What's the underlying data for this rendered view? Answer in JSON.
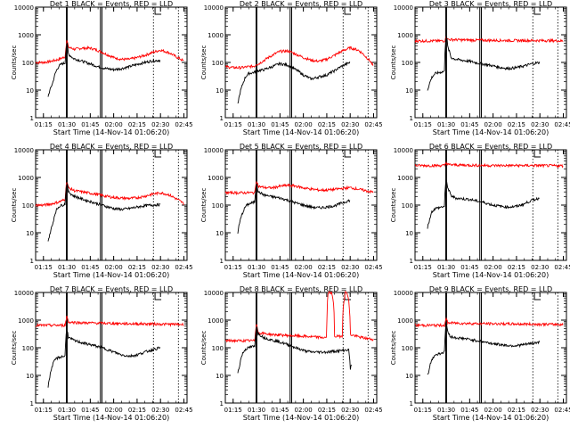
{
  "figure": {
    "ylabel": "Counts/sec",
    "xlabel": "Start Time (14-Nov-14 01:06:20)",
    "x_ticks": [
      "01:15",
      "01:30",
      "01:45",
      "02:00",
      "02:15",
      "02:30",
      "02:45"
    ],
    "y_ticks": [
      "1",
      "10",
      "100",
      "1000",
      "10000"
    ],
    "colors": {
      "events": "#000000",
      "lld": "#ff0000",
      "axes": "#000000"
    }
  },
  "chart_data": [
    {
      "type": "line",
      "title": "Det 1 BLACK = Events, RED = LLD",
      "x_range": [
        "01:10",
        "02:47"
      ],
      "ylim": [
        1,
        10000
      ],
      "y_scale": "log",
      "series": [
        {
          "name": "Events",
          "x": [
            "01:18",
            "01:19",
            "01:21",
            "01:23",
            "01:25",
            "01:27",
            "01:29",
            "01:30",
            "01:31",
            "01:34",
            "01:38",
            "01:42",
            "01:46",
            "01:50",
            "01:55",
            "02:00",
            "02:05",
            "02:10",
            "02:15",
            "02:20",
            "02:25",
            "02:30"
          ],
          "values": [
            6,
            9,
            18,
            45,
            75,
            90,
            95,
            520,
            200,
            140,
            120,
            100,
            85,
            70,
            60,
            55,
            60,
            70,
            85,
            100,
            115,
            120
          ]
        },
        {
          "name": "LLD",
          "x": [
            "01:10",
            "01:15",
            "01:20",
            "01:25",
            "01:29",
            "01:30",
            "01:31",
            "01:35",
            "01:40",
            "01:45",
            "01:50",
            "01:55",
            "02:00",
            "02:05",
            "02:10",
            "02:15",
            "02:20",
            "02:25",
            "02:30",
            "02:35",
            "02:40",
            "02:45"
          ],
          "values": [
            100,
            100,
            110,
            130,
            160,
            650,
            350,
            300,
            330,
            330,
            270,
            200,
            150,
            130,
            130,
            150,
            180,
            230,
            280,
            230,
            160,
            110
          ]
        }
      ]
    },
    {
      "type": "line",
      "title": "Det 2 BLACK = Events, RED = LLD",
      "x_range": [
        "01:10",
        "02:47"
      ],
      "ylim": [
        1,
        10000
      ],
      "y_scale": "log",
      "series": [
        {
          "name": "Events",
          "x": [
            "01:18",
            "01:19",
            "01:21",
            "01:23",
            "01:25",
            "01:27",
            "01:29",
            "01:30",
            "01:31",
            "01:35",
            "01:40",
            "01:45",
            "01:50",
            "01:55",
            "02:00",
            "02:05",
            "02:10",
            "02:15",
            "02:20",
            "02:25",
            "02:30"
          ],
          "values": [
            3,
            6,
            15,
            30,
            40,
            42,
            45,
            55,
            50,
            55,
            70,
            90,
            80,
            55,
            35,
            25,
            30,
            35,
            50,
            75,
            100
          ]
        },
        {
          "name": "LLD",
          "x": [
            "01:10",
            "01:15",
            "01:20",
            "01:25",
            "01:29",
            "01:30",
            "01:31",
            "01:35",
            "01:40",
            "01:45",
            "01:50",
            "01:55",
            "02:00",
            "02:05",
            "02:10",
            "02:15",
            "02:20",
            "02:25",
            "02:30",
            "02:35",
            "02:40",
            "02:45"
          ],
          "values": [
            70,
            65,
            65,
            70,
            75,
            90,
            85,
            120,
            180,
            250,
            260,
            200,
            150,
            120,
            110,
            130,
            180,
            260,
            340,
            280,
            160,
            70
          ]
        }
      ]
    },
    {
      "type": "line",
      "title": "Det 3 BLACK = Events, RED = LLD",
      "x_range": [
        "01:10",
        "02:47"
      ],
      "ylim": [
        1,
        10000
      ],
      "y_scale": "log",
      "series": [
        {
          "name": "Events",
          "x": [
            "01:18",
            "01:19",
            "01:21",
            "01:23",
            "01:25",
            "01:27",
            "01:29",
            "01:30",
            "01:31",
            "01:33",
            "01:36",
            "01:40",
            "01:45",
            "01:50",
            "01:55",
            "02:00",
            "02:05",
            "02:10",
            "02:15",
            "02:20",
            "02:25",
            "02:30"
          ],
          "values": [
            10,
            15,
            30,
            40,
            42,
            45,
            48,
            1000,
            350,
            150,
            130,
            120,
            110,
            95,
            85,
            75,
            65,
            60,
            65,
            75,
            90,
            100
          ]
        },
        {
          "name": "LLD",
          "x": [
            "01:10",
            "01:20",
            "01:29",
            "01:30",
            "01:31",
            "01:40",
            "01:50",
            "02:00",
            "02:10",
            "02:20",
            "02:30",
            "02:40",
            "02:45"
          ],
          "values": [
            600,
            600,
            600,
            850,
            680,
            650,
            640,
            630,
            620,
            620,
            620,
            610,
            600
          ]
        }
      ]
    },
    {
      "type": "line",
      "title": "Det 4 BLACK = Events, RED = LLD",
      "x_range": [
        "01:10",
        "02:47"
      ],
      "ylim": [
        1,
        10000
      ],
      "y_scale": "log",
      "series": [
        {
          "name": "Events",
          "x": [
            "01:18",
            "01:19",
            "01:21",
            "01:23",
            "01:25",
            "01:27",
            "01:29",
            "01:30",
            "01:31",
            "01:34",
            "01:38",
            "01:42",
            "01:46",
            "01:50",
            "01:55",
            "02:00",
            "02:05",
            "02:10",
            "02:15",
            "02:20",
            "02:25",
            "02:30"
          ],
          "values": [
            5,
            8,
            20,
            60,
            90,
            100,
            110,
            650,
            300,
            220,
            180,
            150,
            130,
            110,
            90,
            75,
            70,
            75,
            85,
            95,
            100,
            105
          ]
        },
        {
          "name": "LLD",
          "x": [
            "01:10",
            "01:15",
            "01:20",
            "01:25",
            "01:29",
            "01:30",
            "01:31",
            "01:35",
            "01:40",
            "01:45",
            "01:50",
            "01:55",
            "02:00",
            "02:05",
            "02:10",
            "02:15",
            "02:20",
            "02:25",
            "02:30",
            "02:35",
            "02:40",
            "02:45"
          ],
          "values": [
            100,
            100,
            110,
            130,
            160,
            750,
            420,
            330,
            300,
            270,
            240,
            210,
            190,
            180,
            175,
            185,
            210,
            250,
            280,
            240,
            170,
            110
          ]
        }
      ]
    },
    {
      "type": "line",
      "title": "Det 5 BLACK = Events, RED = LLD",
      "x_range": [
        "01:10",
        "02:47"
      ],
      "ylim": [
        1,
        10000
      ],
      "y_scale": "log",
      "series": [
        {
          "name": "Events",
          "x": [
            "01:18",
            "01:19",
            "01:21",
            "01:23",
            "01:25",
            "01:27",
            "01:29",
            "01:30",
            "01:31",
            "01:35",
            "01:40",
            "01:45",
            "01:50",
            "01:55",
            "02:00",
            "02:05",
            "02:10",
            "02:15",
            "02:20",
            "02:25",
            "02:30"
          ],
          "values": [
            10,
            20,
            50,
            90,
            110,
            120,
            130,
            650,
            300,
            230,
            200,
            180,
            150,
            120,
            100,
            85,
            80,
            85,
            95,
            120,
            150
          ]
        },
        {
          "name": "LLD",
          "x": [
            "01:10",
            "01:20",
            "01:29",
            "01:30",
            "01:31",
            "01:35",
            "01:40",
            "01:45",
            "01:50",
            "01:55",
            "02:00",
            "02:05",
            "02:10",
            "02:15",
            "02:20",
            "02:25",
            "02:30",
            "02:35",
            "02:40",
            "02:45"
          ],
          "values": [
            280,
            280,
            280,
            800,
            480,
            430,
            420,
            480,
            520,
            490,
            420,
            380,
            350,
            350,
            370,
            400,
            430,
            380,
            330,
            290
          ]
        }
      ]
    },
    {
      "type": "line",
      "title": "Det 6 BLACK = Events, RED = LLD",
      "x_range": [
        "01:10",
        "02:47"
      ],
      "ylim": [
        1,
        10000
      ],
      "y_scale": "log",
      "series": [
        {
          "name": "Events",
          "x": [
            "01:18",
            "01:19",
            "01:21",
            "01:23",
            "01:25",
            "01:27",
            "01:29",
            "01:30",
            "01:31",
            "01:33",
            "01:36",
            "01:40",
            "01:45",
            "01:50",
            "01:55",
            "02:00",
            "02:05",
            "02:10",
            "02:15",
            "02:20",
            "02:25",
            "02:30"
          ],
          "values": [
            15,
            25,
            60,
            75,
            80,
            85,
            90,
            900,
            400,
            220,
            180,
            170,
            160,
            140,
            120,
            100,
            90,
            85,
            90,
            110,
            150,
            180
          ]
        },
        {
          "name": "LLD",
          "x": [
            "01:10",
            "01:20",
            "01:29",
            "01:30",
            "01:31",
            "01:40",
            "01:50",
            "02:00",
            "02:10",
            "02:20",
            "02:30",
            "02:40",
            "02:45"
          ],
          "values": [
            2700,
            2700,
            2700,
            3500,
            2900,
            2800,
            2750,
            2700,
            2700,
            2700,
            2700,
            2650,
            2650
          ]
        }
      ]
    },
    {
      "type": "line",
      "title": "Det 7 BLACK = Events, RED = LLD",
      "x_range": [
        "01:10",
        "02:47"
      ],
      "ylim": [
        1,
        10000
      ],
      "y_scale": "log",
      "series": [
        {
          "name": "Events",
          "x": [
            "01:18",
            "01:19",
            "01:21",
            "01:23",
            "01:25",
            "01:27",
            "01:29",
            "01:30",
            "01:31",
            "01:35",
            "01:40",
            "01:45",
            "01:50",
            "01:55",
            "02:00",
            "02:05",
            "02:10",
            "02:15",
            "02:20",
            "02:25",
            "02:30"
          ],
          "values": [
            4,
            8,
            25,
            40,
            45,
            48,
            50,
            500,
            230,
            180,
            150,
            130,
            110,
            90,
            70,
            55,
            50,
            55,
            70,
            85,
            100
          ]
        },
        {
          "name": "LLD",
          "x": [
            "01:10",
            "01:20",
            "01:29",
            "01:30",
            "01:31",
            "01:40",
            "01:50",
            "02:00",
            "02:10",
            "02:20",
            "02:30",
            "02:40",
            "02:45"
          ],
          "values": [
            650,
            650,
            650,
            1400,
            850,
            800,
            780,
            760,
            740,
            730,
            720,
            700,
            700
          ]
        }
      ]
    },
    {
      "type": "line",
      "title": "Det 8 BLACK = Events, RED = LLD",
      "x_range": [
        "01:10",
        "02:47"
      ],
      "ylim": [
        1,
        10000
      ],
      "y_scale": "log",
      "series": [
        {
          "name": "Events",
          "x": [
            "01:18",
            "01:19",
            "01:21",
            "01:23",
            "01:25",
            "01:27",
            "01:29",
            "01:30",
            "01:31",
            "01:35",
            "01:40",
            "01:45",
            "01:50",
            "01:55",
            "02:00",
            "02:05",
            "02:10",
            "02:15",
            "02:20",
            "02:25",
            "02:29",
            "02:30",
            "02:31"
          ],
          "values": [
            12,
            20,
            60,
            90,
            100,
            110,
            110,
            650,
            320,
            230,
            190,
            160,
            130,
            100,
            80,
            70,
            70,
            70,
            75,
            80,
            85,
            15,
            30
          ]
        },
        {
          "name": "LLD",
          "x": [
            "01:10",
            "01:20",
            "01:29",
            "01:30",
            "01:31",
            "01:40",
            "01:50",
            "02:00",
            "02:10",
            "02:15",
            "02:16",
            "02:18",
            "02:20",
            "02:25",
            "02:27",
            "02:28",
            "02:30",
            "02:35",
            "02:40",
            "02:45"
          ],
          "values": [
            180,
            180,
            180,
            800,
            350,
            300,
            280,
            260,
            240,
            230,
            10000,
            10000,
            260,
            260,
            10000,
            10000,
            300,
            250,
            220,
            200
          ]
        }
      ]
    },
    {
      "type": "line",
      "title": "Det 9 BLACK = Events, RED = LLD",
      "x_range": [
        "01:10",
        "02:47"
      ],
      "ylim": [
        1,
        10000
      ],
      "y_scale": "log",
      "series": [
        {
          "name": "Events",
          "x": [
            "01:18",
            "01:19",
            "01:21",
            "01:23",
            "01:25",
            "01:27",
            "01:29",
            "01:30",
            "01:31",
            "01:33",
            "01:36",
            "01:40",
            "01:45",
            "01:50",
            "01:55",
            "02:00",
            "02:05",
            "02:10",
            "02:15",
            "02:20",
            "02:25",
            "02:30"
          ],
          "values": [
            10,
            15,
            40,
            55,
            60,
            65,
            70,
            800,
            350,
            250,
            230,
            220,
            200,
            180,
            160,
            140,
            130,
            120,
            120,
            130,
            145,
            160
          ]
        },
        {
          "name": "LLD",
          "x": [
            "01:10",
            "01:20",
            "01:29",
            "01:30",
            "01:31",
            "01:40",
            "01:50",
            "02:00",
            "02:10",
            "02:20",
            "02:30",
            "02:40",
            "02:45"
          ],
          "values": [
            650,
            650,
            650,
            1100,
            800,
            770,
            750,
            740,
            730,
            720,
            710,
            700,
            700
          ]
        }
      ]
    }
  ]
}
